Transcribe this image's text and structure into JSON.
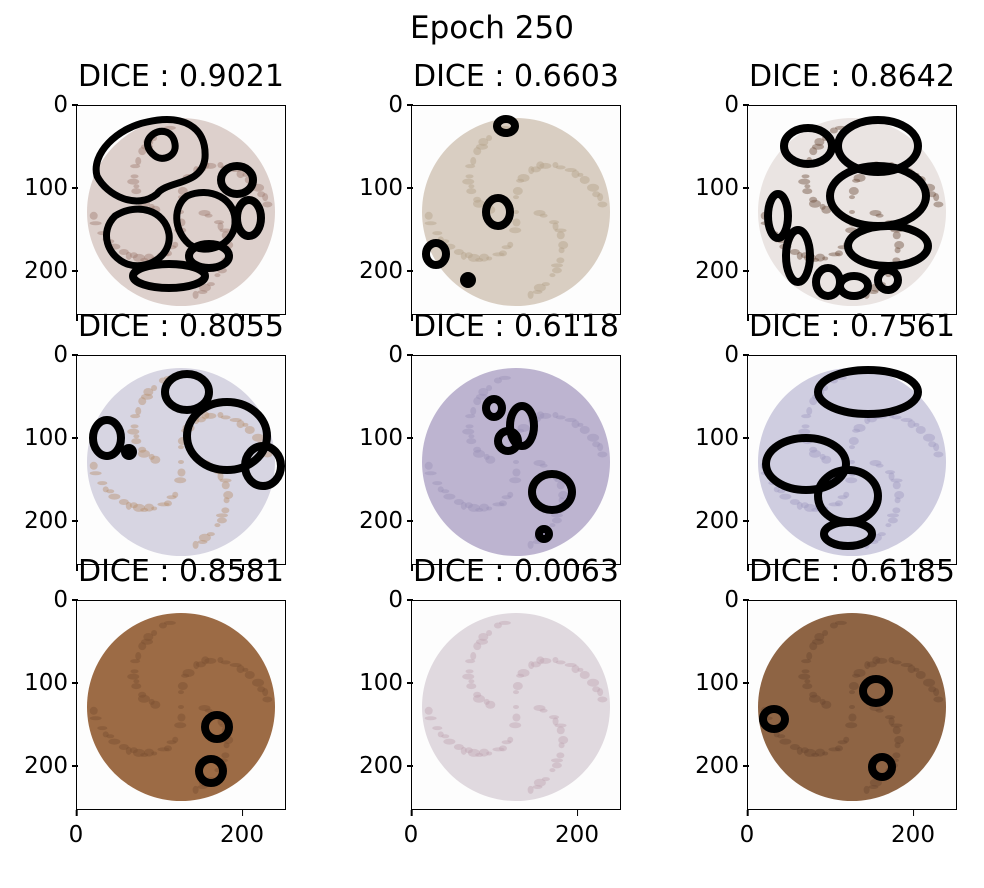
{
  "figure": {
    "title": "Epoch 250",
    "panels": [
      {
        "title": "DICE : 0.9021",
        "tissue": "#ddd0cc",
        "stain": "#a07c70",
        "xticks": [
          "",
          ""
        ]
      },
      {
        "title": "DICE : 0.6603",
        "tissue": "#d9cec2",
        "stain": "#b3a18a",
        "xticks": [
          "",
          ""
        ]
      },
      {
        "title": "DICE : 0.8642",
        "tissue": "#eae4e2",
        "stain": "#6e4f3e",
        "xticks": [
          "",
          ""
        ]
      },
      {
        "title": "DICE : 0.8055",
        "tissue": "#d7d5e2",
        "stain": "#b7906f",
        "xticks": [
          "",
          ""
        ]
      },
      {
        "title": "DICE : 0.6118",
        "tissue": "#bdb4d0",
        "stain": "#9b92b8",
        "xticks": [
          "",
          ""
        ]
      },
      {
        "title": "DICE : 0.7561",
        "tissue": "#cfcde0",
        "stain": "#9f9cc2",
        "xticks": [
          "",
          ""
        ]
      },
      {
        "title": "DICE : 0.8581",
        "tissue": "#9c6b45",
        "stain": "#7a5030",
        "xticks": [
          "",
          ""
        ]
      },
      {
        "title": "DICE : 0.0063",
        "tissue": "#e0d9df",
        "stain": "#c1a6b3",
        "xticks": [
          "",
          ""
        ]
      },
      {
        "title": "DICE : 0.6185",
        "tissue": "#8e6444",
        "stain": "#6b4630",
        "xticks": [
          "",
          ""
        ]
      }
    ],
    "yticks": [
      "0",
      "100",
      "200"
    ],
    "xticks_bottom": [
      "0",
      "200"
    ],
    "mask_color": "#000000"
  }
}
